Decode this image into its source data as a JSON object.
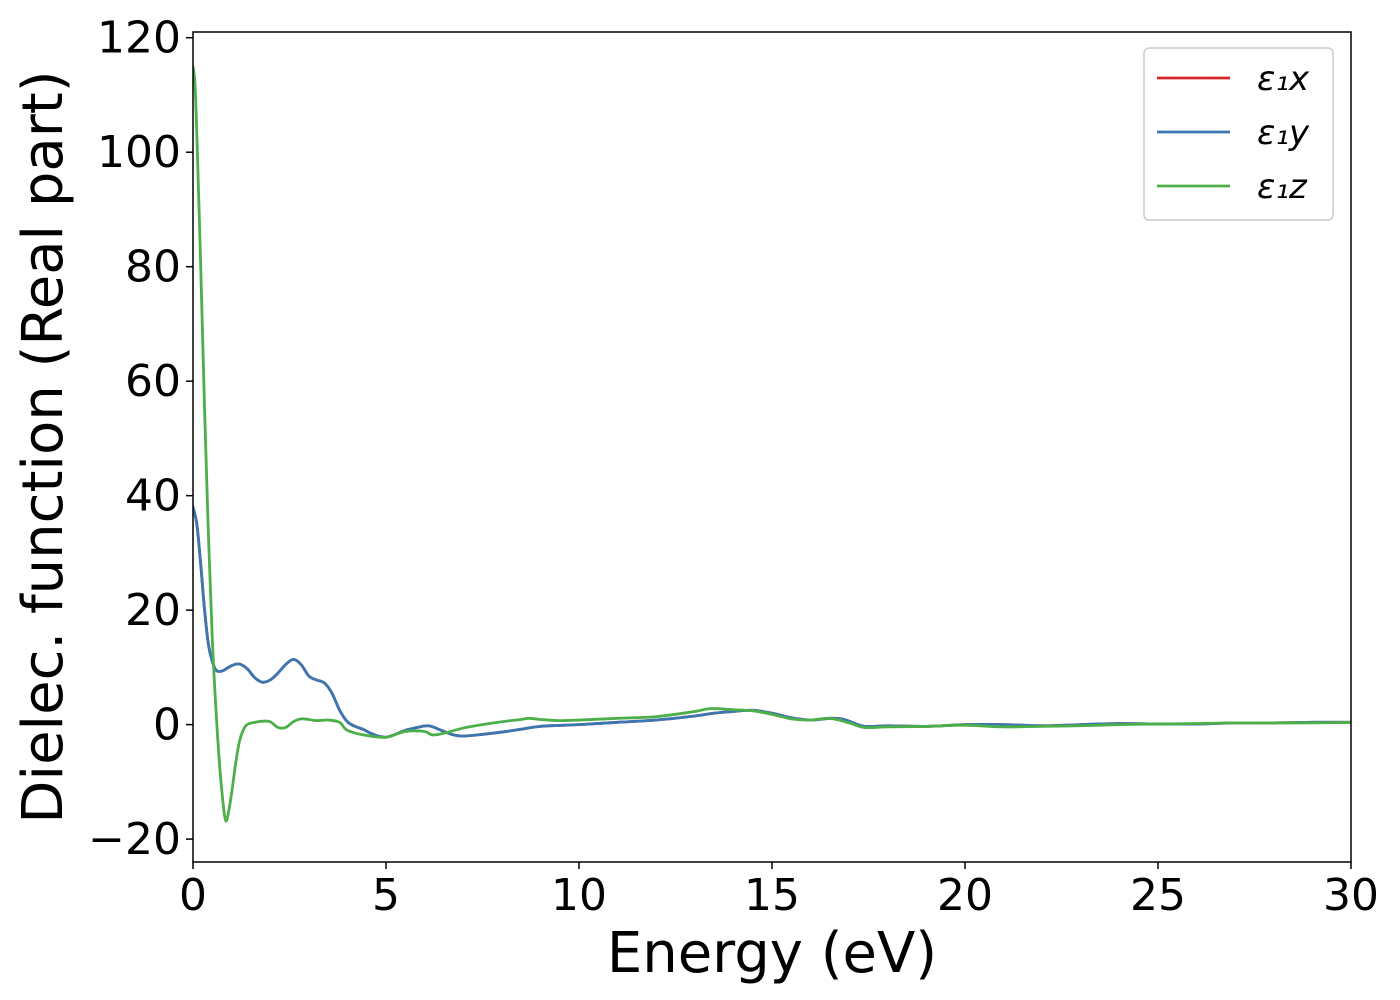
{
  "chart_data": {
    "type": "line",
    "xlabel": "Energy (eV)",
    "ylabel": "Dielec. function (Real part)",
    "xlim": [
      0,
      30
    ],
    "ylim": [
      -24,
      121
    ],
    "xticks": [
      0,
      5,
      10,
      15,
      20,
      25,
      30
    ],
    "yticks": [
      -20,
      0,
      20,
      40,
      60,
      80,
      100,
      120
    ],
    "ytick_labels": [
      "−20",
      "0",
      "20",
      "40",
      "60",
      "80",
      "100",
      "120"
    ],
    "grid": false,
    "legend_position": "top-right",
    "series": [
      {
        "name": "ε₁x",
        "color": "#d62728",
        "x": [
          0,
          0.1,
          0.2,
          0.3,
          0.4,
          0.5,
          0.6,
          0.7,
          0.8,
          1.0,
          1.2,
          1.4,
          1.6,
          1.8,
          2.0,
          2.2,
          2.4,
          2.6,
          2.8,
          3.0,
          3.2,
          3.4,
          3.6,
          3.8,
          4.0,
          4.2,
          4.4,
          4.6,
          4.8,
          5.0,
          5.2,
          5.5,
          5.8,
          6.1,
          6.4,
          6.7,
          7.0,
          7.5,
          8.0,
          8.5,
          9.0,
          10.0,
          11.0,
          12.0,
          13.0,
          13.5,
          14.0,
          14.5,
          15.0,
          15.5,
          16.0,
          16.5,
          16.8,
          17.0,
          17.4,
          18.0,
          19.0,
          20.0,
          21.0,
          22.0,
          23.0,
          24.0,
          25.0,
          26.0,
          27.0,
          28.0,
          29.0,
          30.0
        ],
        "y": [
          38,
          35,
          28,
          20,
          14,
          11,
          9.5,
          9.3,
          9.5,
          10.3,
          10.6,
          9.8,
          8.2,
          7.4,
          7.8,
          9,
          10.5,
          11.4,
          10.5,
          8.5,
          7.8,
          7.3,
          5.5,
          2.5,
          0.5,
          -0.3,
          -0.8,
          -1.5,
          -2,
          -2.2,
          -1.8,
          -1,
          -0.5,
          -0.2,
          -0.9,
          -1.7,
          -2,
          -1.7,
          -1.3,
          -0.8,
          -0.3,
          0,
          0.4,
          0.8,
          1.5,
          2,
          2.3,
          2.5,
          2,
          1.2,
          0.8,
          1.1,
          1,
          0.6,
          -0.3,
          -0.2,
          -0.3,
          0,
          0,
          -0.2,
          0,
          0.2,
          0.1,
          0.1,
          0.3,
          0.3,
          0.4,
          0.4
        ]
      },
      {
        "name": "ε₁y",
        "color": "#3a78b3",
        "x": [
          0,
          0.1,
          0.2,
          0.3,
          0.4,
          0.5,
          0.6,
          0.7,
          0.8,
          1.0,
          1.2,
          1.4,
          1.6,
          1.8,
          2.0,
          2.2,
          2.4,
          2.6,
          2.8,
          3.0,
          3.2,
          3.4,
          3.6,
          3.8,
          4.0,
          4.2,
          4.4,
          4.6,
          4.8,
          5.0,
          5.2,
          5.5,
          5.8,
          6.1,
          6.4,
          6.7,
          7.0,
          7.5,
          8.0,
          8.5,
          9.0,
          10.0,
          11.0,
          12.0,
          13.0,
          13.5,
          14.0,
          14.5,
          15.0,
          15.5,
          16.0,
          16.5,
          16.8,
          17.0,
          17.4,
          18.0,
          19.0,
          20.0,
          21.0,
          22.0,
          23.0,
          24.0,
          25.0,
          26.0,
          27.0,
          28.0,
          29.0,
          30.0
        ],
        "y": [
          38,
          35,
          28,
          20,
          14,
          11,
          9.5,
          9.3,
          9.5,
          10.3,
          10.6,
          9.8,
          8.2,
          7.4,
          7.8,
          9,
          10.5,
          11.4,
          10.5,
          8.5,
          7.8,
          7.3,
          5.5,
          2.5,
          0.5,
          -0.3,
          -0.8,
          -1.5,
          -2,
          -2.2,
          -1.8,
          -1,
          -0.5,
          -0.2,
          -0.9,
          -1.7,
          -2,
          -1.7,
          -1.3,
          -0.8,
          -0.3,
          0,
          0.4,
          0.8,
          1.5,
          2,
          2.3,
          2.5,
          2,
          1.2,
          0.8,
          1.1,
          1,
          0.6,
          -0.3,
          -0.2,
          -0.3,
          0,
          0,
          -0.2,
          0,
          0.2,
          0.1,
          0.1,
          0.3,
          0.3,
          0.4,
          0.4
        ]
      },
      {
        "name": "ε₁z",
        "color": "#4daf4a",
        "x": [
          0,
          0.05,
          0.1,
          0.2,
          0.3,
          0.4,
          0.5,
          0.6,
          0.7,
          0.8,
          0.85,
          0.9,
          1.0,
          1.1,
          1.2,
          1.3,
          1.4,
          1.6,
          1.8,
          2.0,
          2.2,
          2.4,
          2.6,
          2.8,
          3.0,
          3.2,
          3.5,
          3.8,
          4.0,
          4.5,
          5.0,
          5.5,
          6.0,
          6.2,
          6.5,
          7.0,
          7.5,
          8.0,
          8.5,
          8.7,
          9.0,
          9.5,
          10.0,
          11.0,
          12.0,
          13.0,
          13.4,
          14.0,
          14.5,
          15.0,
          15.5,
          16.0,
          16.5,
          17.0,
          17.4,
          18.0,
          19.0,
          20.0,
          21.0,
          22.0,
          23.0,
          24.0,
          25.0,
          26.0,
          27.0,
          28.0,
          29.0,
          30.0
        ],
        "y": [
          115,
          112,
          103,
          80,
          55,
          33,
          15,
          2,
          -8,
          -15,
          -16.8,
          -16,
          -12,
          -7,
          -3,
          -1,
          0,
          0.4,
          0.6,
          0.5,
          -0.5,
          -0.5,
          0.5,
          1.0,
          0.9,
          0.7,
          0.8,
          0.4,
          -1,
          -1.9,
          -2.2,
          -1.2,
          -1.2,
          -1.8,
          -1.5,
          -0.6,
          0,
          0.5,
          0.9,
          1.1,
          0.9,
          0.7,
          0.8,
          1.1,
          1.4,
          2.3,
          2.8,
          2.6,
          2.4,
          1.8,
          1,
          0.8,
          1.1,
          0.3,
          -0.5,
          -0.4,
          -0.3,
          -0.1,
          -0.4,
          -0.3,
          -0.2,
          0,
          0.1,
          0.2,
          0.3,
          0.3,
          0.3,
          0.4
        ]
      }
    ]
  }
}
